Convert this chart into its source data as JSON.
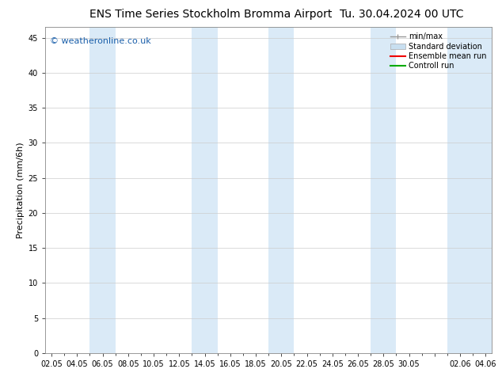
{
  "title_left": "ENS Time Series Stockholm Bromma Airport",
  "title_right": "Tu. 30.04.2024 00 UTC",
  "ylabel": "Precipitation (mm/6h)",
  "ylim": [
    0,
    46.5
  ],
  "yticks": [
    0,
    5,
    10,
    15,
    20,
    25,
    30,
    35,
    40,
    45
  ],
  "x_labels": [
    "02.05",
    "04.05",
    "06.05",
    "08.05",
    "10.05",
    "12.05",
    "14.05",
    "16.05",
    "18.05",
    "20.05",
    "22.05",
    "24.05",
    "26.05",
    "28.05",
    "30.05",
    "",
    "02.06",
    "04.06"
  ],
  "x_positions": [
    0,
    2,
    4,
    6,
    8,
    10,
    12,
    14,
    16,
    18,
    20,
    22,
    24,
    26,
    28,
    30,
    32,
    34
  ],
  "xlim": [
    -0.5,
    34.5
  ],
  "shaded_bands": [
    {
      "x_start": 3,
      "x_end": 5
    },
    {
      "x_start": 11,
      "x_end": 13
    },
    {
      "x_start": 17,
      "x_end": 19
    },
    {
      "x_start": 25,
      "x_end": 27
    },
    {
      "x_start": 31,
      "x_end": 35
    }
  ],
  "band_color": "#daeaf7",
  "background_color": "#ffffff",
  "grid_color": "#cccccc",
  "watermark": "© weatheronline.co.uk",
  "watermark_color": "#1a5faa",
  "legend_items": [
    {
      "label": "min/max",
      "color": "#999999",
      "style": "errorbar"
    },
    {
      "label": "Standard deviation",
      "color": "#c8dff0",
      "style": "box"
    },
    {
      "label": "Ensemble mean run",
      "color": "#ee0000",
      "style": "line"
    },
    {
      "label": "Controll run",
      "color": "#00aa00",
      "style": "line"
    }
  ],
  "title_fontsize": 10,
  "tick_fontsize": 7,
  "ylabel_fontsize": 8,
  "legend_fontsize": 7,
  "watermark_fontsize": 8
}
